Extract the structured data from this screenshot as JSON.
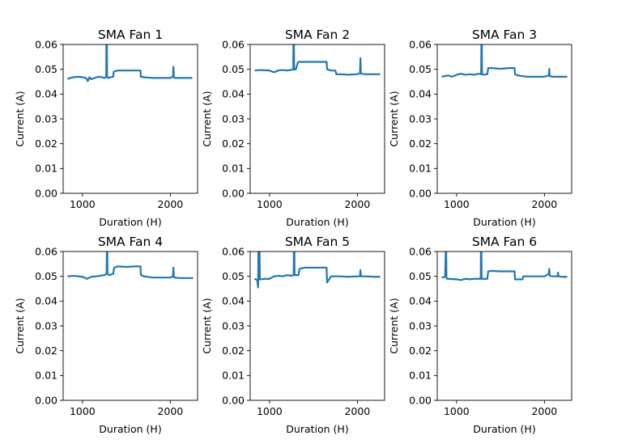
{
  "figure": {
    "background": "#ffffff"
  },
  "chart_data": [
    {
      "type": "line",
      "title": "SMA Fan 1",
      "xlabel": "Duration (H)",
      "ylabel": "Current (A)",
      "xlim": [
        780,
        2310
      ],
      "ylim": [
        0,
        0.06
      ],
      "xticks": [
        1000,
        2000
      ],
      "xtick_labels": [
        "1000",
        "2000"
      ],
      "yticks": [
        0,
        0.01,
        0.02,
        0.03,
        0.04,
        0.05,
        0.06
      ],
      "ytick_labels": [
        "0.00",
        "0.01",
        "0.02",
        "0.03",
        "0.04",
        "0.05",
        "0.06"
      ],
      "color": "#1f77b4",
      "series": [
        {
          "x": [
            830,
            860,
            900,
            950,
            1000,
            1040,
            1060,
            1080,
            1100,
            1140,
            1180,
            1220,
            1250,
            1270,
            1275,
            1280,
            1285,
            1290,
            1320,
            1350,
            1355,
            1400,
            1500,
            1600,
            1660,
            1665,
            1700,
            1800,
            1900,
            2000,
            2030,
            2035,
            2040,
            2050,
            2100,
            2200,
            2250
          ],
          "y": [
            0.046,
            0.0465,
            0.0468,
            0.047,
            0.0468,
            0.0465,
            0.0452,
            0.0468,
            0.046,
            0.0465,
            0.047,
            0.0468,
            0.0465,
            0.047,
            0.075,
            0.047,
            0.0468,
            0.0465,
            0.0468,
            0.047,
            0.049,
            0.0495,
            0.0495,
            0.0495,
            0.0495,
            0.047,
            0.0468,
            0.0465,
            0.0465,
            0.0465,
            0.047,
            0.051,
            0.0468,
            0.0465,
            0.0465,
            0.0465,
            0.0465
          ]
        }
      ]
    },
    {
      "type": "line",
      "title": "SMA Fan 2",
      "xlabel": "Duration (H)",
      "ylabel": "Current (A)",
      "xlim": [
        780,
        2310
      ],
      "ylim": [
        0,
        0.06
      ],
      "xticks": [
        1000,
        2000
      ],
      "xtick_labels": [
        "1000",
        "2000"
      ],
      "yticks": [
        0,
        0.01,
        0.02,
        0.03,
        0.04,
        0.05,
        0.06
      ],
      "ytick_labels": [
        "0.00",
        "0.01",
        "0.02",
        "0.03",
        "0.04",
        "0.05",
        "0.06"
      ],
      "color": "#1f77b4",
      "series": [
        {
          "x": [
            830,
            900,
            1000,
            1050,
            1100,
            1150,
            1200,
            1250,
            1270,
            1275,
            1280,
            1285,
            1300,
            1320,
            1330,
            1400,
            1500,
            1600,
            1650,
            1655,
            1700,
            1750,
            1760,
            1800,
            1900,
            2000,
            2030,
            2035,
            2040,
            2100,
            2200,
            2260
          ],
          "y": [
            0.0495,
            0.0497,
            0.0495,
            0.0488,
            0.0495,
            0.0497,
            0.0495,
            0.0498,
            0.05,
            0.075,
            0.05,
            0.0498,
            0.05,
            0.0525,
            0.053,
            0.053,
            0.053,
            0.053,
            0.053,
            0.05,
            0.0495,
            0.0495,
            0.048,
            0.048,
            0.0478,
            0.048,
            0.0485,
            0.0545,
            0.0482,
            0.048,
            0.048,
            0.048
          ]
        }
      ]
    },
    {
      "type": "line",
      "title": "SMA Fan 3",
      "xlabel": "Duration (H)",
      "ylabel": "Current (A)",
      "xlim": [
        780,
        2310
      ],
      "ylim": [
        0,
        0.06
      ],
      "xticks": [
        1000,
        2000
      ],
      "xtick_labels": [
        "1000",
        "2000"
      ],
      "yticks": [
        0,
        0.01,
        0.02,
        0.03,
        0.04,
        0.05,
        0.06
      ],
      "ytick_labels": [
        "0.00",
        "0.01",
        "0.02",
        "0.03",
        "0.04",
        "0.05",
        "0.06"
      ],
      "color": "#1f77b4",
      "series": [
        {
          "x": [
            830,
            900,
            950,
            1000,
            1050,
            1100,
            1150,
            1200,
            1250,
            1280,
            1285,
            1290,
            1300,
            1350,
            1360,
            1400,
            1500,
            1600,
            1660,
            1665,
            1700,
            1800,
            1900,
            2000,
            2050,
            2055,
            2060,
            2100,
            2200,
            2260
          ],
          "y": [
            0.047,
            0.0475,
            0.047,
            0.0478,
            0.0482,
            0.0478,
            0.048,
            0.0478,
            0.0482,
            0.048,
            0.075,
            0.048,
            0.0478,
            0.048,
            0.0505,
            0.0505,
            0.0502,
            0.0505,
            0.0505,
            0.048,
            0.0475,
            0.047,
            0.047,
            0.047,
            0.0475,
            0.0502,
            0.0472,
            0.047,
            0.047,
            0.047
          ]
        }
      ]
    },
    {
      "type": "line",
      "title": "SMA Fan 4",
      "xlabel": "Duration (H)",
      "ylabel": "Current (A)",
      "xlim": [
        780,
        2310
      ],
      "ylim": [
        0,
        0.06
      ],
      "xticks": [
        1000,
        2000
      ],
      "xtick_labels": [
        "1000",
        "2000"
      ],
      "yticks": [
        0,
        0.01,
        0.02,
        0.03,
        0.04,
        0.05,
        0.06
      ],
      "ytick_labels": [
        "0.00",
        "0.01",
        "0.02",
        "0.03",
        "0.04",
        "0.05",
        "0.06"
      ],
      "color": "#1f77b4",
      "series": [
        {
          "x": [
            830,
            900,
            1000,
            1050,
            1100,
            1150,
            1200,
            1250,
            1275,
            1280,
            1285,
            1300,
            1350,
            1360,
            1400,
            1500,
            1600,
            1660,
            1665,
            1700,
            1800,
            1900,
            2000,
            2030,
            2035,
            2040,
            2100,
            2200,
            2260
          ],
          "y": [
            0.05,
            0.0502,
            0.0498,
            0.049,
            0.0498,
            0.05,
            0.0502,
            0.0505,
            0.051,
            0.075,
            0.051,
            0.0505,
            0.051,
            0.0535,
            0.054,
            0.0538,
            0.054,
            0.054,
            0.0505,
            0.05,
            0.0495,
            0.0495,
            0.0495,
            0.05,
            0.0535,
            0.0495,
            0.0493,
            0.0493,
            0.0493
          ]
        }
      ]
    },
    {
      "type": "line",
      "title": "SMA Fan 5",
      "xlabel": "Duration (H)",
      "ylabel": "Current (A)",
      "xlim": [
        780,
        2310
      ],
      "ylim": [
        0,
        0.06
      ],
      "xticks": [
        1000,
        2000
      ],
      "xtick_labels": [
        "1000",
        "2000"
      ],
      "yticks": [
        0,
        0.01,
        0.02,
        0.03,
        0.04,
        0.05,
        0.06
      ],
      "ytick_labels": [
        "0.00",
        "0.01",
        "0.02",
        "0.03",
        "0.04",
        "0.05",
        "0.06"
      ],
      "color": "#1f77b4",
      "series": [
        {
          "x": [
            830,
            860,
            870,
            875,
            880,
            885,
            890,
            900,
            950,
            1000,
            1050,
            1100,
            1150,
            1200,
            1250,
            1275,
            1280,
            1285,
            1300,
            1330,
            1340,
            1400,
            1500,
            1600,
            1650,
            1655,
            1700,
            1800,
            1900,
            2000,
            2030,
            2035,
            2040,
            2100,
            2200,
            2260
          ],
          "y": [
            0.049,
            0.0485,
            0.0455,
            0.065,
            0.0485,
            0.065,
            0.049,
            0.0488,
            0.049,
            0.049,
            0.05,
            0.0502,
            0.05,
            0.0505,
            0.0502,
            0.0505,
            0.075,
            0.0505,
            0.0505,
            0.0505,
            0.053,
            0.0535,
            0.0535,
            0.0535,
            0.0535,
            0.0475,
            0.05,
            0.05,
            0.0498,
            0.05,
            0.05,
            0.0525,
            0.05,
            0.05,
            0.0498,
            0.0498
          ]
        }
      ]
    },
    {
      "type": "line",
      "title": "SMA Fan 6",
      "xlabel": "Duration (H)",
      "ylabel": "Current (A)",
      "xlim": [
        780,
        2310
      ],
      "ylim": [
        0,
        0.06
      ],
      "xticks": [
        1000,
        2000
      ],
      "xtick_labels": [
        "1000",
        "2000"
      ],
      "yticks": [
        0,
        0.01,
        0.02,
        0.03,
        0.04,
        0.05,
        0.06
      ],
      "ytick_labels": [
        "0.00",
        "0.01",
        "0.02",
        "0.03",
        "0.04",
        "0.05",
        "0.06"
      ],
      "color": "#1f77b4",
      "series": [
        {
          "x": [
            830,
            870,
            880,
            885,
            890,
            900,
            1000,
            1050,
            1100,
            1150,
            1200,
            1250,
            1275,
            1280,
            1285,
            1300,
            1350,
            1360,
            1400,
            1500,
            1600,
            1660,
            1665,
            1700,
            1750,
            1760,
            1800,
            1900,
            2000,
            2050,
            2055,
            2060,
            2100,
            2150,
            2155,
            2160,
            2200,
            2260
          ],
          "y": [
            0.0495,
            0.0498,
            0.065,
            0.0495,
            0.049,
            0.049,
            0.0488,
            0.0485,
            0.049,
            0.0488,
            0.049,
            0.049,
            0.049,
            0.075,
            0.049,
            0.049,
            0.049,
            0.052,
            0.0522,
            0.052,
            0.052,
            0.052,
            0.0488,
            0.0488,
            0.0488,
            0.05,
            0.05,
            0.05,
            0.05,
            0.051,
            0.053,
            0.0502,
            0.05,
            0.05,
            0.0515,
            0.05,
            0.0498,
            0.0498
          ]
        }
      ]
    }
  ]
}
